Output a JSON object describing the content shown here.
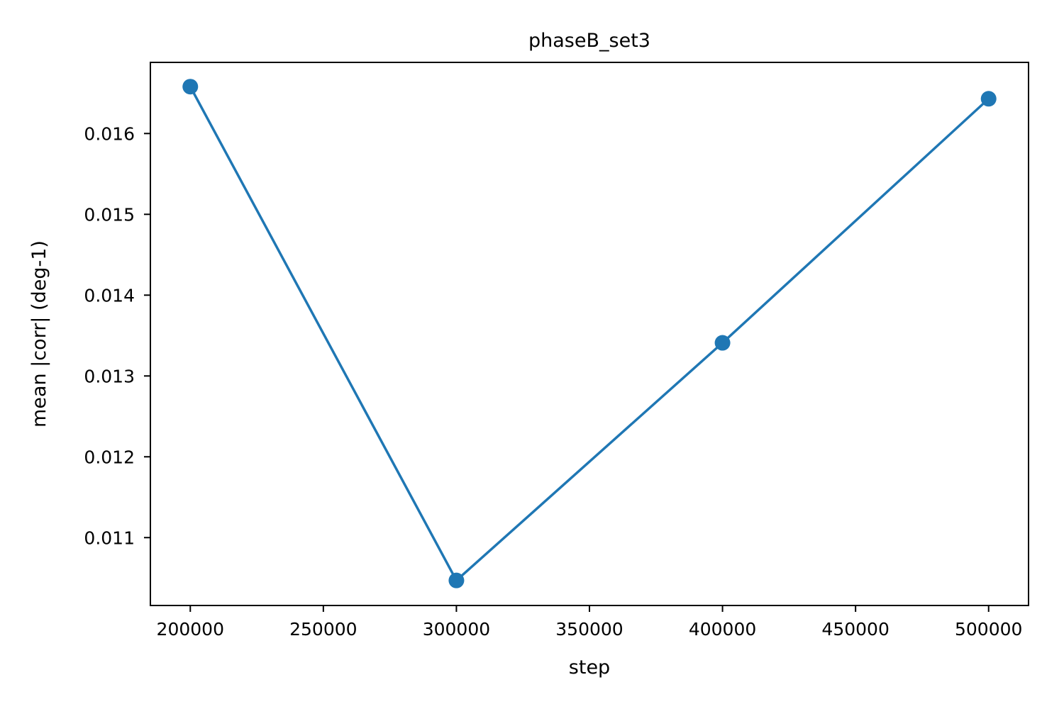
{
  "colors": {
    "series": "#1f77b4",
    "axes": "#000000",
    "background": "#ffffff"
  },
  "chart_data": {
    "type": "line",
    "title": "phaseB_set3",
    "xlabel": "step",
    "ylabel": "mean |corr| (deg-1)",
    "xlim": [
      185000,
      515000
    ],
    "ylim": [
      0.01016,
      0.01688
    ],
    "x_ticks": [
      200000,
      250000,
      300000,
      350000,
      400000,
      450000,
      500000
    ],
    "x_tick_labels": [
      "200000",
      "250000",
      "300000",
      "350000",
      "400000",
      "450000",
      "500000"
    ],
    "y_ticks": [
      0.011,
      0.012,
      0.013,
      0.014,
      0.015,
      0.016
    ],
    "y_tick_labels": [
      "0.011",
      "0.012",
      "0.013",
      "0.014",
      "0.015",
      "0.016"
    ],
    "grid": false,
    "markers": true,
    "series": [
      {
        "x": [
          200000,
          300000,
          400000,
          500000
        ],
        "y": [
          0.01658,
          0.01047,
          0.01341,
          0.01643
        ]
      }
    ]
  }
}
